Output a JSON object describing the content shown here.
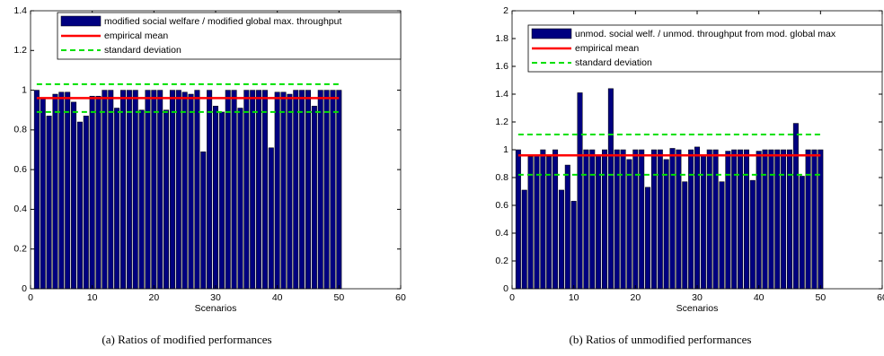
{
  "chart_data": [
    {
      "type": "bar",
      "xlabel": "Scenarios",
      "caption": "(a) Ratios of modified performances",
      "x": [
        1,
        2,
        3,
        4,
        5,
        6,
        7,
        8,
        9,
        10,
        11,
        12,
        13,
        14,
        15,
        16,
        17,
        18,
        19,
        20,
        21,
        22,
        23,
        24,
        25,
        26,
        27,
        28,
        29,
        30,
        31,
        32,
        33,
        34,
        35,
        36,
        37,
        38,
        39,
        40,
        41,
        42,
        43,
        44,
        45,
        46,
        47,
        48,
        49,
        50
      ],
      "series": [
        {
          "name": "modified social welfare / modified global max. throughput",
          "color": "#000080",
          "values": [
            1.0,
            0.96,
            0.87,
            0.98,
            0.99,
            0.99,
            0.94,
            0.84,
            0.87,
            0.97,
            0.97,
            1.0,
            1.0,
            0.91,
            1.0,
            1.0,
            1.0,
            0.9,
            1.0,
            1.0,
            1.0,
            0.9,
            1.0,
            1.0,
            0.99,
            0.98,
            1.0,
            0.69,
            1.0,
            0.92,
            0.89,
            1.0,
            1.0,
            0.91,
            1.0,
            1.0,
            1.0,
            1.0,
            0.71,
            0.99,
            0.99,
            0.98,
            1.0,
            1.0,
            1.0,
            0.92,
            1.0,
            1.0,
            1.0,
            1.0
          ]
        }
      ],
      "mean": {
        "name": "empirical mean",
        "color": "#ff0000",
        "value": 0.96
      },
      "std": {
        "name": "standard deviation",
        "color": "#00e000",
        "values": [
          0.89,
          1.03
        ]
      },
      "xlim": [
        0,
        60
      ],
      "xticks": [
        0,
        10,
        20,
        30,
        40,
        50,
        60
      ],
      "ylim": [
        0,
        1.4
      ],
      "yticks": [
        0,
        0.2,
        0.4,
        0.6,
        0.8,
        1,
        1.2,
        1.4
      ],
      "grid": false
    },
    {
      "type": "bar",
      "xlabel": "Scenarios",
      "caption": "(b) Ratios of unmodified performances",
      "x": [
        1,
        2,
        3,
        4,
        5,
        6,
        7,
        8,
        9,
        10,
        11,
        12,
        13,
        14,
        15,
        16,
        17,
        18,
        19,
        20,
        21,
        22,
        23,
        24,
        25,
        26,
        27,
        28,
        29,
        30,
        31,
        32,
        33,
        34,
        35,
        36,
        37,
        38,
        39,
        40,
        41,
        42,
        43,
        44,
        45,
        46,
        47,
        48,
        49,
        50
      ],
      "series": [
        {
          "name": "unmod. social welf. / unmod. throughput from mod. global max",
          "color": "#000080",
          "values": [
            1.0,
            0.71,
            0.95,
            0.96,
            1.0,
            0.95,
            1.0,
            0.71,
            0.89,
            0.63,
            1.41,
            1.0,
            1.0,
            0.96,
            1.0,
            1.44,
            1.0,
            1.0,
            0.93,
            1.0,
            1.0,
            0.73,
            1.0,
            1.0,
            0.93,
            1.01,
            1.0,
            0.77,
            1.0,
            1.02,
            0.96,
            1.0,
            1.0,
            0.77,
            0.99,
            1.0,
            1.0,
            1.0,
            0.78,
            0.99,
            1.0,
            1.0,
            1.0,
            1.0,
            1.0,
            1.19,
            0.81,
            1.0,
            1.0,
            1.0
          ]
        }
      ],
      "mean": {
        "name": "empirical mean",
        "color": "#ff0000",
        "value": 0.96
      },
      "std": {
        "name": "standard deviation",
        "color": "#00e000",
        "values": [
          0.82,
          1.11
        ]
      },
      "xlim": [
        0,
        60
      ],
      "xticks": [
        0,
        10,
        20,
        30,
        40,
        50,
        60
      ],
      "ylim": [
        0,
        2
      ],
      "yticks": [
        0,
        0.2,
        0.4,
        0.6,
        0.8,
        1,
        1.2,
        1.4,
        1.6,
        1.8,
        2
      ],
      "grid": false
    }
  ]
}
